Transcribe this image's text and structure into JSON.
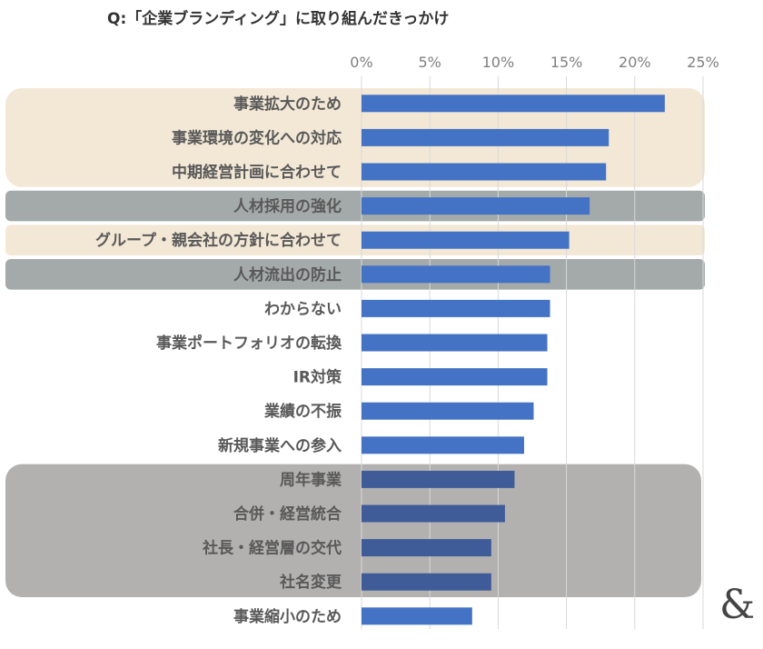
{
  "chart_data": {
    "type": "bar",
    "orientation": "horizontal",
    "title": "Q:「企業ブランディング」に取り組んだきっかけ",
    "xlabel": "",
    "ylabel": "",
    "xlim": [
      0,
      25
    ],
    "ticks": [
      "0%",
      "5%",
      "10%",
      "15%",
      "20%",
      "25%"
    ],
    "grid": true,
    "categories": [
      "事業拡大のため",
      "事業環境の変化への対応",
      "中期経営計画に合わせて",
      "人材採用の強化",
      "グループ・親会社の方針に合わせて",
      "人材流出の防止",
      "わからない",
      "事業ポートフォリオの転換",
      "IR対策",
      "業績の不振",
      "新規事業への参入",
      "周年事業",
      "合併・経営統合",
      "社長・経営層の交代",
      "社名変更",
      "事業縮小のため"
    ],
    "values": [
      22.2,
      18.1,
      17.9,
      16.7,
      15.2,
      13.8,
      13.8,
      13.6,
      13.6,
      12.6,
      11.9,
      11.2,
      10.5,
      9.5,
      9.5,
      8.1
    ],
    "highlight_groups": [
      {
        "rows": [
          0,
          2
        ],
        "style": "beige"
      },
      {
        "rows": [
          3,
          3
        ],
        "style": "slate"
      },
      {
        "rows": [
          4,
          4
        ],
        "style": "beige"
      },
      {
        "rows": [
          5,
          5
        ],
        "style": "slate"
      },
      {
        "rows": [
          11,
          14
        ],
        "style": "gray"
      }
    ],
    "colors": {
      "bar": "#4472c4",
      "bar_in_gray_group": "#3f5c99",
      "beige": "#f3e8d6",
      "slate": "#a3aaa9",
      "gray": "#b3b1b0",
      "grid": "#d9d9d9"
    }
  },
  "logo": {
    "glyph": "&"
  }
}
